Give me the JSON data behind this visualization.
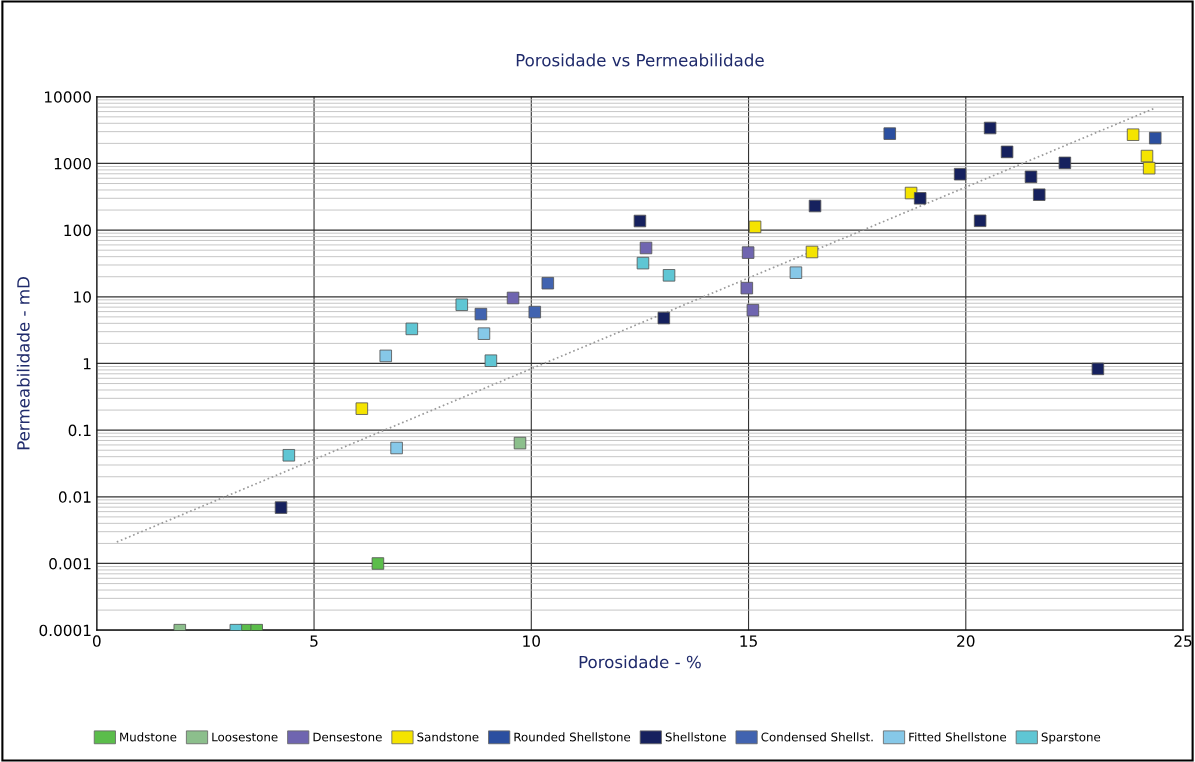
{
  "chart_data": {
    "type": "scatter",
    "title": "Porosidade vs Permeabilidade",
    "xlabel": "Porosidade - %",
    "ylabel": "Permeabilidade - mD",
    "xlim": [
      0,
      25
    ],
    "xticks": [
      0,
      5,
      10,
      15,
      20,
      25
    ],
    "ylim": [
      0.0001,
      10000
    ],
    "yticks": [
      0.0001,
      0.001,
      0.01,
      0.1,
      1,
      10,
      100,
      1000,
      10000
    ],
    "log": "y",
    "grid": true,
    "legend": "bottom",
    "marker": "square",
    "series": [
      {
        "name": "Mudstone",
        "color": "#5bbd4b",
        "x": [
          6.47,
          3.43,
          3.68
        ],
        "values": [
          0.001,
          0.0001,
          0.0001
        ]
      },
      {
        "name": "Loosestone",
        "color": "#8cbf8c",
        "x": [
          1.91,
          9.74
        ],
        "values": [
          0.0001,
          0.064
        ]
      },
      {
        "name": "Densestone",
        "color": "#6f65b0",
        "x": [
          9.58,
          12.64,
          14.99,
          14.96,
          15.1
        ],
        "values": [
          9.6,
          54,
          46,
          13.5,
          6.3
        ]
      },
      {
        "name": "Sandstone",
        "color": "#f5e400",
        "x": [
          6.1,
          15.15,
          16.46,
          18.74,
          23.85,
          24.17,
          24.22
        ],
        "values": [
          0.21,
          112,
          47,
          360,
          2700,
          1290,
          850
        ]
      },
      {
        "name": "Rounded Shellstone",
        "color": "#2b4fa0",
        "x": [
          18.25,
          24.36
        ],
        "values": [
          2800,
          2400
        ]
      },
      {
        "name": "Shellstone",
        "color": "#16215e",
        "x": [
          4.24,
          12.5,
          13.05,
          16.53,
          18.95,
          19.87,
          20.33,
          20.56,
          20.95,
          21.5,
          21.69,
          22.28,
          23.04
        ],
        "values": [
          0.0069,
          137,
          4.8,
          230,
          300,
          690,
          138,
          3400,
          1490,
          630,
          340,
          1020,
          0.83
        ]
      },
      {
        "name": "Condensed Shellst.",
        "color": "#4163b0",
        "x": [
          8.84,
          10.08,
          10.38
        ],
        "values": [
          5.5,
          5.9,
          16
        ]
      },
      {
        "name": "Fitted Shellstone",
        "color": "#86c8e8",
        "x": [
          6.65,
          8.91,
          6.9,
          16.09
        ],
        "values": [
          1.3,
          2.8,
          0.054,
          23
        ]
      },
      {
        "name": "Sparstone",
        "color": "#5fc6d4",
        "x": [
          7.25,
          8.4,
          9.07,
          4.42,
          12.57,
          13.17,
          3.2
        ],
        "values": [
          3.3,
          7.6,
          1.1,
          0.042,
          32,
          21,
          0.0001
        ]
      },
      {
        "type": "line",
        "color": "#999999",
        "line_style": "dotted",
        "marker": "none",
        "x": [
          0.46,
          24.36
        ],
        "values": [
          0.0021,
          6800
        ]
      }
    ]
  }
}
